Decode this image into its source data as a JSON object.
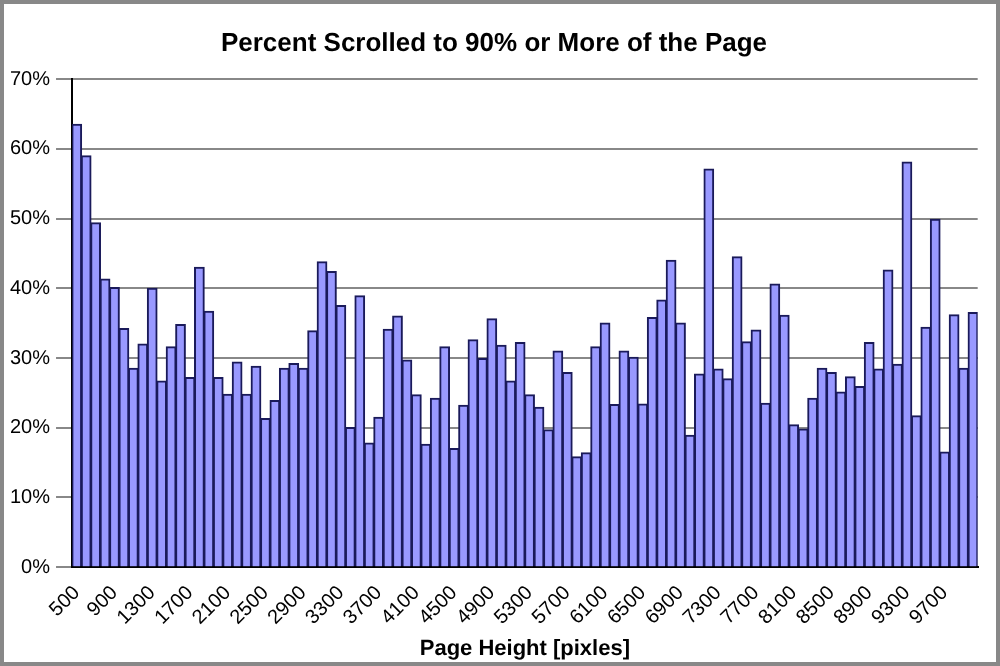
{
  "chart_data": {
    "type": "bar",
    "title": "Percent Scrolled to 90% or More of the Page",
    "xlabel": "Page Height [pixles]",
    "categories": [
      "500",
      null,
      null,
      null,
      "900",
      null,
      null,
      null,
      "1300",
      null,
      null,
      null,
      "1700",
      null,
      null,
      null,
      "2100",
      null,
      null,
      null,
      "2500",
      null,
      null,
      null,
      "2900",
      null,
      null,
      null,
      "3300",
      null,
      null,
      null,
      "3700",
      null,
      null,
      null,
      "4100",
      null,
      null,
      null,
      "4500",
      null,
      null,
      null,
      "4900",
      null,
      null,
      null,
      "5300",
      null,
      null,
      null,
      "5700",
      null,
      null,
      null,
      "6100",
      null,
      null,
      null,
      "6500",
      null,
      null,
      null,
      "6900",
      null,
      null,
      null,
      "7300",
      null,
      null,
      null,
      "7700",
      null,
      null,
      null,
      "8100",
      null,
      null,
      null,
      "8500",
      null,
      null,
      null,
      "8900",
      null,
      null,
      null,
      "9300",
      null,
      null,
      null,
      "9700",
      null,
      null,
      null
    ],
    "values": [
      63.5,
      59,
      49.4,
      41.3,
      40.1,
      34.2,
      28.5,
      32,
      40,
      26.7,
      31.6,
      34.8,
      27.2,
      43,
      36.7,
      27.2,
      24.8,
      29.4,
      24.8,
      28.8,
      21.3,
      23.9,
      28.5,
      29.2,
      28.5,
      33.9,
      43.8,
      42.4,
      37.5,
      20,
      38.9,
      17.8,
      21.5,
      34.1,
      36,
      29.7,
      24.7,
      17.6,
      24.2,
      31.6,
      17,
      23.2,
      32.6,
      29.9,
      35.6,
      31.8,
      26.7,
      32.2,
      24.7,
      22.9,
      19.7,
      31,
      27.9,
      15.8,
      16.4,
      31.6,
      35,
      23.3,
      31,
      30.1,
      23.4,
      35.8,
      38.3,
      44,
      35,
      18.9,
      27.7,
      57.1,
      28.4,
      27,
      44.5,
      32.3,
      34,
      23.5,
      40.6,
      36.1,
      20.4,
      19.8,
      24.2,
      28.5,
      27.9,
      25.1,
      27.3,
      25.9,
      32.2,
      28.4,
      42.6,
      29.1,
      58.1,
      21.7,
      34.4,
      49.9,
      16.5,
      36.2,
      28.5,
      36.5
    ],
    "color": "#9999ff",
    "ylim": [
      0,
      70
    ],
    "yticks": [
      {
        "value": 0,
        "label": "0%"
      },
      {
        "value": 10,
        "label": "10%"
      },
      {
        "value": 20,
        "label": "20%"
      },
      {
        "value": 30,
        "label": "30%"
      },
      {
        "value": 40,
        "label": "40%"
      },
      {
        "value": 50,
        "label": "50%"
      },
      {
        "value": 60,
        "label": "60%"
      },
      {
        "value": 70,
        "label": "70%"
      }
    ],
    "grid": "y",
    "legend": false
  }
}
